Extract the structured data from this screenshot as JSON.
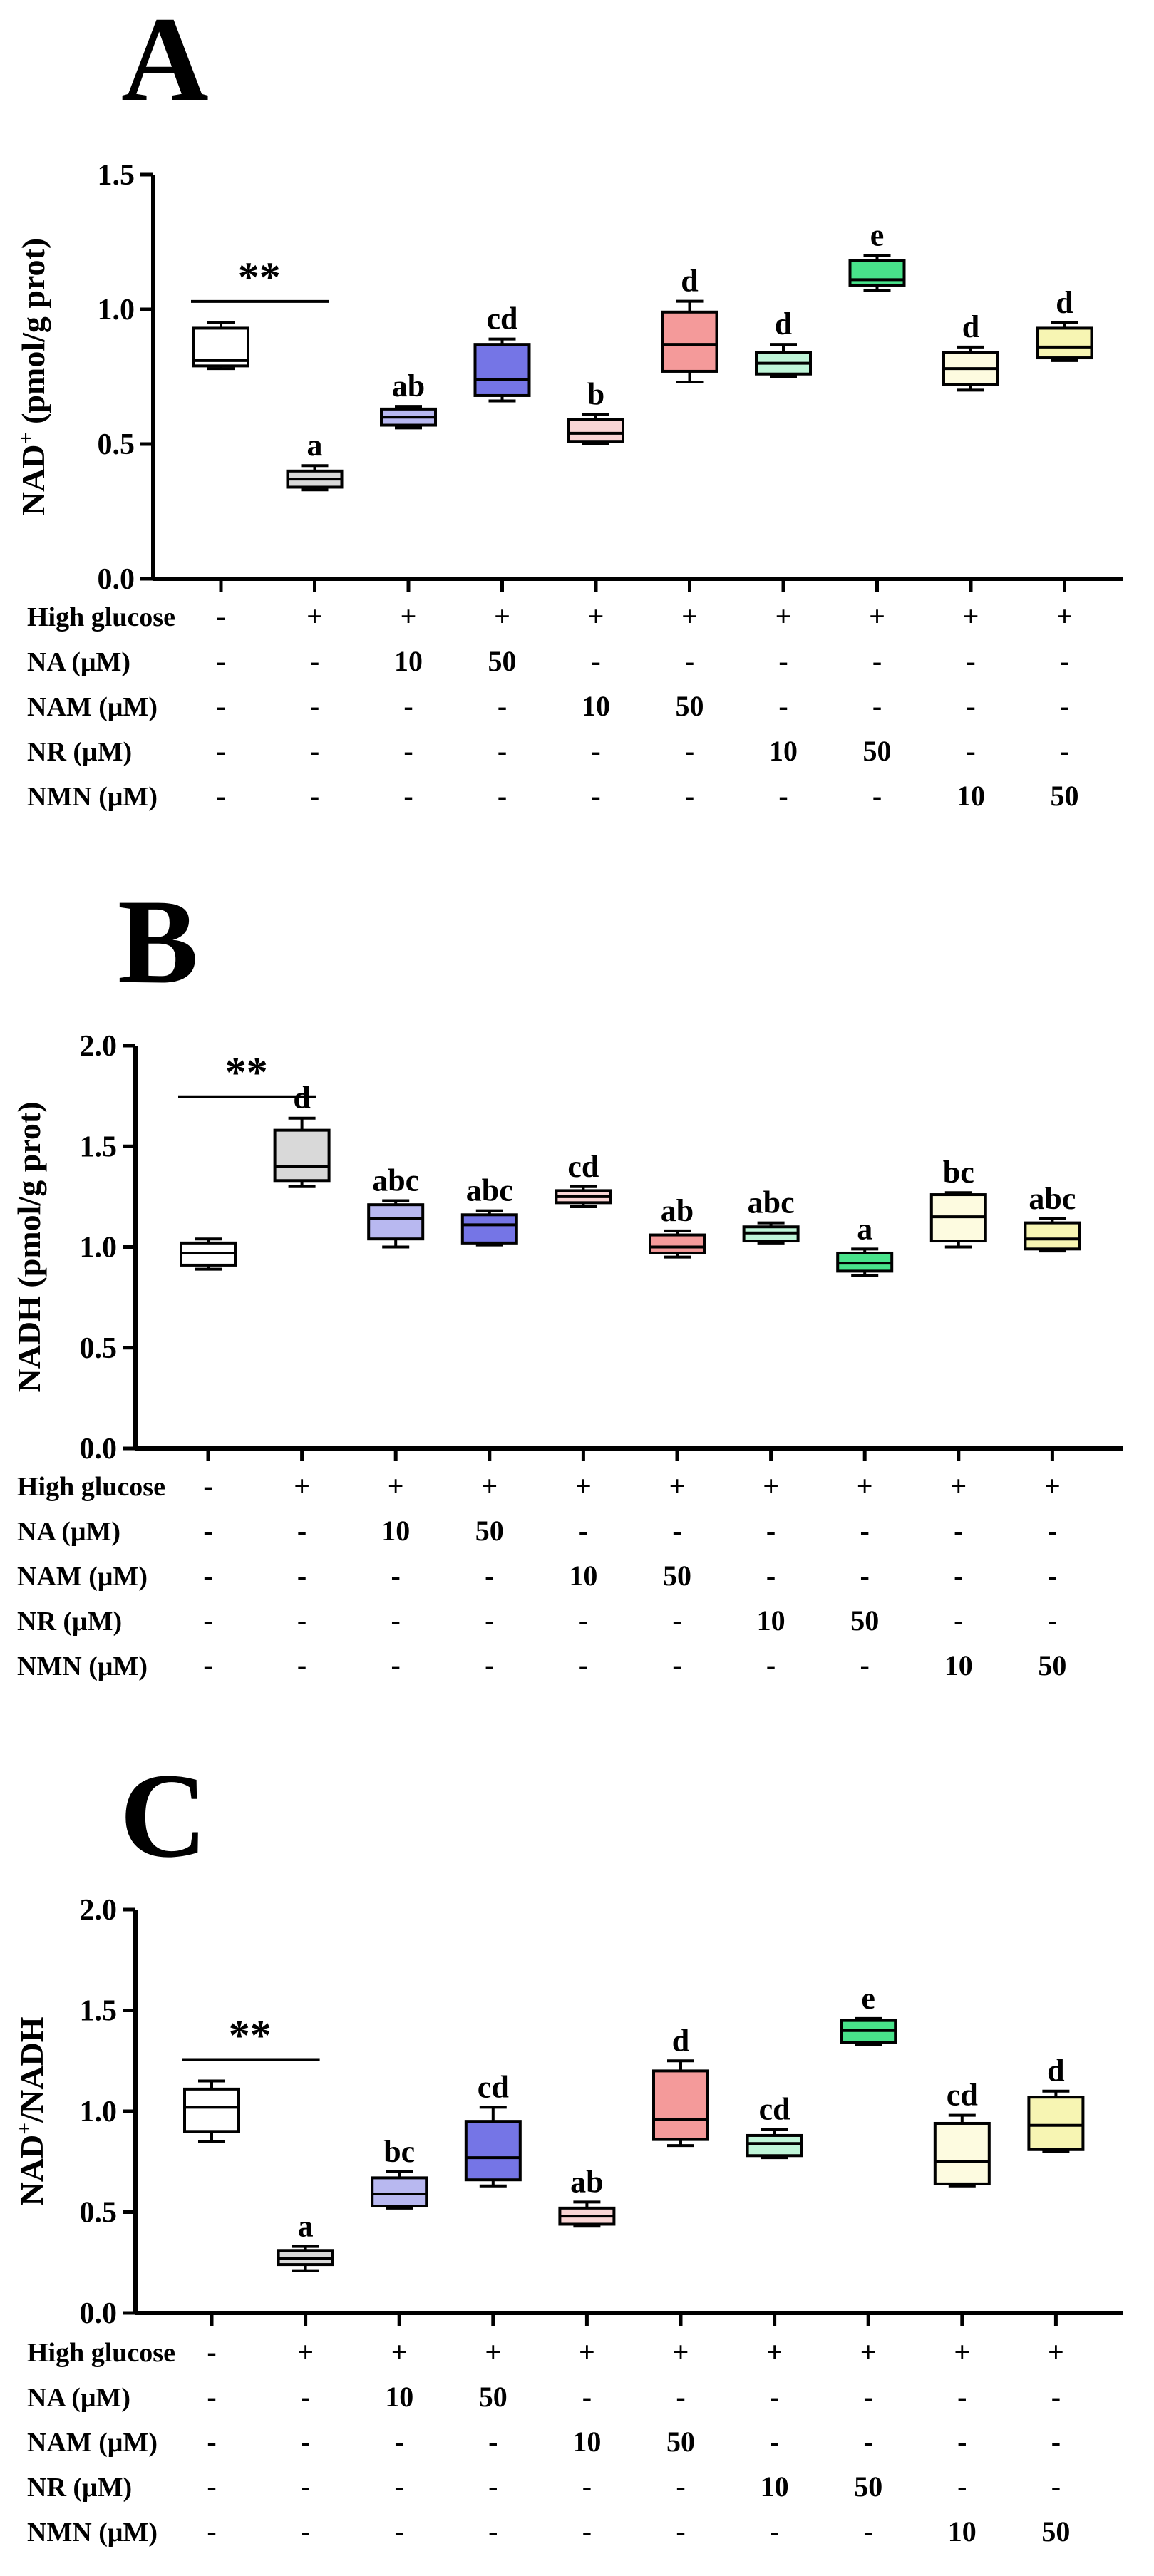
{
  "figure_colors": [
    "#ffffff",
    "#d9d9d9",
    "#b8b8f0",
    "#7575e6",
    "#f9d5d5",
    "#f49a9a",
    "#bff5d8",
    "#48e28a",
    "#fdfbe0",
    "#f7f5b3"
  ],
  "treatment_rows": [
    {
      "label": "High glucose",
      "values": [
        "-",
        "+",
        "+",
        "+",
        "+",
        "+",
        "+",
        "+",
        "+",
        "+"
      ]
    },
    {
      "label": "NA (μM)",
      "values": [
        "-",
        "-",
        "10",
        "50",
        "-",
        "-",
        "-",
        "-",
        "-",
        "-"
      ]
    },
    {
      "label": "NAM (μM)",
      "values": [
        "-",
        "-",
        "-",
        "-",
        "10",
        "50",
        "-",
        "-",
        "-",
        "-"
      ]
    },
    {
      "label": "NR (μM)",
      "values": [
        "-",
        "-",
        "-",
        "-",
        "-",
        "-",
        "10",
        "50",
        "-",
        "-"
      ]
    },
    {
      "label": "NMN (μM)",
      "values": [
        "-",
        "-",
        "-",
        "-",
        "-",
        "-",
        "-",
        "-",
        "10",
        "50"
      ]
    }
  ],
  "chart_data": [
    {
      "panel": "A",
      "type": "box",
      "ylabel": "NAD+ (pmol/g prot)",
      "ylabel_main": "NAD",
      "ylabel_sup": "+",
      "ylabel_rest": " (pmol/g prot)",
      "ylim": [
        0,
        1.5
      ],
      "yticks": [
        "0.0",
        "0.5",
        "1.0",
        "1.5"
      ],
      "significance": "**",
      "boxes": [
        {
          "min": 0.78,
          "q1": 0.79,
          "median": 0.81,
          "q3": 0.93,
          "max": 0.95,
          "letter": ""
        },
        {
          "min": 0.33,
          "q1": 0.34,
          "median": 0.37,
          "q3": 0.4,
          "max": 0.42,
          "letter": "a"
        },
        {
          "min": 0.56,
          "q1": 0.57,
          "median": 0.6,
          "q3": 0.63,
          "max": 0.64,
          "letter": "ab"
        },
        {
          "min": 0.66,
          "q1": 0.68,
          "median": 0.74,
          "q3": 0.87,
          "max": 0.89,
          "letter": "cd"
        },
        {
          "min": 0.5,
          "q1": 0.51,
          "median": 0.54,
          "q3": 0.59,
          "max": 0.61,
          "letter": "b"
        },
        {
          "min": 0.73,
          "q1": 0.77,
          "median": 0.87,
          "q3": 0.99,
          "max": 1.03,
          "letter": "d"
        },
        {
          "min": 0.75,
          "q1": 0.76,
          "median": 0.8,
          "q3": 0.84,
          "max": 0.87,
          "letter": "d"
        },
        {
          "min": 1.07,
          "q1": 1.09,
          "median": 1.11,
          "q3": 1.18,
          "max": 1.2,
          "letter": "e"
        },
        {
          "min": 0.7,
          "q1": 0.72,
          "median": 0.78,
          "q3": 0.84,
          "max": 0.86,
          "letter": "d"
        },
        {
          "min": 0.81,
          "q1": 0.82,
          "median": 0.86,
          "q3": 0.93,
          "max": 0.95,
          "letter": "d"
        }
      ]
    },
    {
      "panel": "B",
      "type": "box",
      "ylabel": "NADH (pmol/g prot)",
      "ylabel_main": "NADH (pmol/g prot)",
      "ylabel_sup": "",
      "ylabel_rest": "",
      "ylim": [
        0,
        2.0
      ],
      "yticks": [
        "0.0",
        "0.5",
        "1.0",
        "1.5",
        "2.0"
      ],
      "significance": "**",
      "boxes": [
        {
          "min": 0.89,
          "q1": 0.91,
          "median": 0.97,
          "q3": 1.02,
          "max": 1.04,
          "letter": ""
        },
        {
          "min": 1.3,
          "q1": 1.33,
          "median": 1.4,
          "q3": 1.58,
          "max": 1.64,
          "letter": "d"
        },
        {
          "min": 1.0,
          "q1": 1.04,
          "median": 1.14,
          "q3": 1.21,
          "max": 1.23,
          "letter": "abc"
        },
        {
          "min": 1.01,
          "q1": 1.02,
          "median": 1.11,
          "q3": 1.16,
          "max": 1.18,
          "letter": "abc"
        },
        {
          "min": 1.2,
          "q1": 1.22,
          "median": 1.25,
          "q3": 1.28,
          "max": 1.3,
          "letter": "cd"
        },
        {
          "min": 0.95,
          "q1": 0.97,
          "median": 1.0,
          "q3": 1.06,
          "max": 1.08,
          "letter": "ab"
        },
        {
          "min": 1.02,
          "q1": 1.03,
          "median": 1.07,
          "q3": 1.1,
          "max": 1.12,
          "letter": "abc"
        },
        {
          "min": 0.86,
          "q1": 0.88,
          "median": 0.92,
          "q3": 0.97,
          "max": 0.99,
          "letter": "a"
        },
        {
          "min": 1.0,
          "q1": 1.03,
          "median": 1.15,
          "q3": 1.26,
          "max": 1.27,
          "letter": "bc"
        },
        {
          "min": 0.98,
          "q1": 0.99,
          "median": 1.04,
          "q3": 1.12,
          "max": 1.14,
          "letter": "abc"
        }
      ]
    },
    {
      "panel": "C",
      "type": "box",
      "ylabel": "NAD+/NADH",
      "ylabel_main": "NAD",
      "ylabel_sup": "+",
      "ylabel_rest": "/NADH",
      "ylim": [
        0,
        2.0
      ],
      "yticks": [
        "0.0",
        "0.5",
        "1.0",
        "1.5",
        "2.0"
      ],
      "significance": "**",
      "boxes": [
        {
          "min": 0.85,
          "q1": 0.9,
          "median": 1.02,
          "q3": 1.11,
          "max": 1.15,
          "letter": ""
        },
        {
          "min": 0.21,
          "q1": 0.24,
          "median": 0.27,
          "q3": 0.31,
          "max": 0.33,
          "letter": "a"
        },
        {
          "min": 0.52,
          "q1": 0.53,
          "median": 0.59,
          "q3": 0.67,
          "max": 0.7,
          "letter": "bc"
        },
        {
          "min": 0.63,
          "q1": 0.66,
          "median": 0.77,
          "q3": 0.95,
          "max": 1.02,
          "letter": "cd"
        },
        {
          "min": 0.43,
          "q1": 0.44,
          "median": 0.48,
          "q3": 0.52,
          "max": 0.55,
          "letter": "ab"
        },
        {
          "min": 0.83,
          "q1": 0.86,
          "median": 0.96,
          "q3": 1.2,
          "max": 1.25,
          "letter": "d"
        },
        {
          "min": 0.77,
          "q1": 0.78,
          "median": 0.84,
          "q3": 0.88,
          "max": 0.91,
          "letter": "cd"
        },
        {
          "min": 1.33,
          "q1": 1.34,
          "median": 1.4,
          "q3": 1.45,
          "max": 1.46,
          "letter": "e"
        },
        {
          "min": 0.63,
          "q1": 0.64,
          "median": 0.75,
          "q3": 0.94,
          "max": 0.98,
          "letter": "cd"
        },
        {
          "min": 0.8,
          "q1": 0.81,
          "median": 0.93,
          "q3": 1.07,
          "max": 1.1,
          "letter": "d"
        }
      ]
    }
  ]
}
